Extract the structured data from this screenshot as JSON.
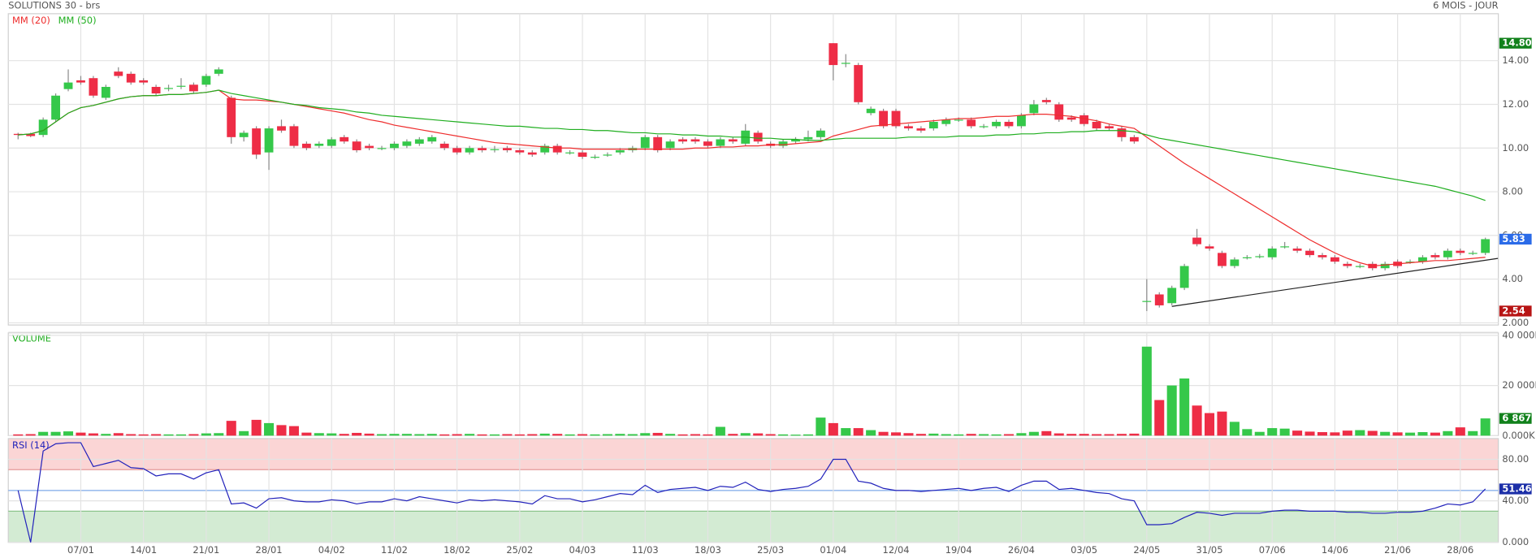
{
  "chart_data": [
    {
      "type": "candlestick",
      "title": "SOLUTIONS 30 - brs",
      "subtitle": "6 MOIS - JOUR",
      "up_color": "#35c84a",
      "down_color": "#ee2d46",
      "open": [
        10.65,
        10.65,
        10.6,
        11.3,
        12.7,
        13.1,
        13.2,
        12.3,
        13.5,
        13.4,
        13.1,
        12.8,
        12.75,
        12.85,
        12.9,
        12.9,
        13.4,
        12.3,
        10.5,
        10.9,
        9.8,
        11.0,
        11.0,
        10.2,
        10.1,
        10.1,
        10.5,
        10.3,
        10.1,
        10.0,
        10.0,
        10.1,
        10.2,
        10.3,
        10.2,
        10.0,
        9.8,
        10.0,
        9.95,
        10.0,
        9.9,
        9.8,
        9.8,
        10.1,
        9.8,
        9.8,
        9.6,
        9.7,
        9.8,
        9.9,
        10.0,
        10.5,
        10.0,
        10.4,
        10.4,
        10.3,
        10.1,
        10.4,
        10.2,
        10.7,
        10.2,
        10.1,
        10.3,
        10.4,
        10.5,
        14.8,
        13.9,
        13.8,
        11.6,
        11.7,
        11.7,
        11.0,
        10.9,
        10.9,
        11.1,
        11.3,
        11.3,
        11.0,
        11.0,
        11.2,
        11.0,
        11.6,
        12.2,
        12.0,
        11.4,
        11.5,
        11.2,
        11.0,
        10.9,
        10.5,
        3.0,
        3.3,
        2.9,
        3.6,
        5.9,
        5.5,
        5.2,
        4.6,
        5.0,
        5.05,
        5.0,
        5.5,
        5.4,
        5.3,
        5.1,
        5.0,
        4.7,
        4.6,
        4.7,
        4.5,
        4.8,
        4.8,
        4.8,
        5.1,
        5.0,
        5.3,
        5.2,
        5.2
      ],
      "high": [
        10.7,
        10.7,
        11.4,
        12.5,
        13.6,
        13.3,
        13.3,
        12.9,
        13.7,
        13.5,
        13.2,
        12.9,
        12.9,
        13.2,
        13.0,
        13.4,
        13.7,
        12.4,
        10.8,
        11.0,
        11.0,
        11.3,
        11.1,
        10.3,
        10.3,
        10.5,
        10.6,
        10.4,
        10.2,
        10.1,
        10.3,
        10.4,
        10.5,
        10.6,
        10.3,
        10.1,
        10.1,
        10.1,
        10.1,
        10.1,
        10.0,
        9.9,
        10.2,
        10.2,
        9.9,
        9.9,
        9.7,
        9.8,
        10.0,
        10.1,
        10.6,
        10.6,
        10.4,
        10.5,
        10.5,
        10.4,
        10.5,
        10.5,
        11.1,
        10.8,
        10.3,
        10.4,
        10.5,
        10.8,
        10.9,
        14.8,
        14.3,
        13.9,
        11.9,
        11.8,
        11.8,
        11.1,
        11.0,
        11.3,
        11.4,
        11.4,
        11.4,
        11.1,
        11.3,
        11.3,
        11.6,
        12.2,
        12.3,
        12.1,
        11.5,
        11.6,
        11.3,
        11.1,
        11.0,
        10.6,
        4.0,
        3.4,
        3.7,
        4.7,
        6.3,
        5.6,
        5.3,
        5.0,
        5.1,
        5.15,
        5.5,
        5.7,
        5.5,
        5.4,
        5.2,
        5.1,
        4.8,
        4.7,
        4.8,
        4.8,
        4.9,
        4.9,
        5.1,
        5.2,
        5.4,
        5.4,
        5.3,
        5.9
      ],
      "low": [
        10.4,
        10.5,
        10.5,
        11.2,
        12.6,
        12.9,
        12.3,
        12.2,
        13.2,
        12.9,
        12.9,
        12.4,
        12.6,
        12.7,
        12.5,
        12.8,
        13.3,
        10.2,
        10.3,
        9.5,
        9.0,
        10.7,
        10.0,
        9.9,
        10.0,
        10.0,
        10.2,
        9.8,
        9.9,
        9.9,
        9.9,
        10.0,
        10.1,
        10.2,
        9.9,
        9.7,
        9.7,
        9.8,
        9.8,
        9.8,
        9.7,
        9.6,
        9.7,
        9.7,
        9.7,
        9.5,
        9.5,
        9.6,
        9.7,
        9.8,
        9.9,
        9.8,
        9.9,
        10.2,
        10.2,
        10.0,
        10.0,
        10.2,
        10.1,
        10.2,
        10.0,
        10.0,
        10.2,
        10.3,
        10.4,
        13.1,
        13.7,
        12.0,
        11.5,
        10.9,
        10.9,
        10.8,
        10.7,
        10.8,
        11.0,
        11.2,
        10.9,
        10.9,
        10.9,
        10.9,
        10.9,
        11.5,
        12.0,
        11.2,
        11.2,
        11.0,
        10.8,
        10.8,
        10.3,
        10.2,
        2.54,
        2.7,
        2.8,
        3.5,
        5.5,
        5.3,
        4.5,
        4.5,
        4.9,
        4.95,
        4.9,
        5.4,
        5.2,
        5.0,
        4.9,
        4.7,
        4.5,
        4.5,
        4.4,
        4.4,
        4.5,
        4.7,
        4.7,
        4.9,
        4.9,
        5.1,
        5.1,
        5.1
      ],
      "close": [
        10.6,
        10.55,
        11.3,
        12.4,
        13.0,
        13.0,
        12.4,
        12.8,
        13.3,
        13.0,
        13.0,
        12.5,
        12.75,
        12.85,
        12.6,
        13.3,
        13.6,
        10.5,
        10.7,
        9.7,
        10.9,
        10.8,
        10.1,
        10.0,
        10.2,
        10.4,
        10.3,
        9.9,
        10.0,
        10.0,
        10.2,
        10.3,
        10.4,
        10.5,
        10.0,
        9.8,
        10.0,
        9.9,
        9.95,
        9.9,
        9.8,
        9.7,
        10.1,
        9.8,
        9.8,
        9.6,
        9.6,
        9.7,
        9.9,
        10.0,
        10.5,
        9.9,
        10.3,
        10.3,
        10.3,
        10.1,
        10.4,
        10.3,
        10.8,
        10.3,
        10.1,
        10.3,
        10.4,
        10.5,
        10.8,
        13.8,
        13.9,
        12.1,
        11.8,
        11.0,
        11.0,
        10.9,
        10.8,
        11.2,
        11.3,
        11.3,
        11.0,
        11.0,
        11.2,
        11.0,
        11.5,
        12.0,
        12.1,
        11.3,
        11.3,
        11.1,
        10.9,
        10.9,
        10.5,
        10.3,
        3.0,
        2.8,
        3.6,
        4.6,
        5.6,
        5.4,
        4.6,
        4.9,
        5.0,
        5.05,
        5.4,
        5.5,
        5.3,
        5.1,
        5.0,
        4.8,
        4.6,
        4.6,
        4.5,
        4.7,
        4.6,
        4.8,
        5.0,
        5.0,
        5.3,
        5.2,
        5.2,
        5.83
      ],
      "series": [
        {
          "name": "MM (20)",
          "color": "#ee2d2d",
          "values": [
            10.6,
            10.65,
            10.8,
            11.2,
            11.6,
            11.85,
            11.95,
            12.1,
            12.25,
            12.35,
            12.4,
            12.4,
            12.45,
            12.45,
            12.5,
            12.55,
            12.65,
            12.25,
            12.2,
            12.2,
            12.15,
            12.1,
            12.0,
            11.9,
            11.8,
            11.7,
            11.6,
            11.45,
            11.3,
            11.2,
            11.05,
            10.95,
            10.85,
            10.75,
            10.65,
            10.55,
            10.45,
            10.35,
            10.25,
            10.2,
            10.15,
            10.1,
            10.05,
            10.0,
            10.0,
            9.95,
            9.95,
            9.95,
            9.95,
            9.95,
            9.95,
            9.95,
            9.95,
            9.95,
            10.0,
            10.0,
            10.05,
            10.05,
            10.1,
            10.1,
            10.15,
            10.15,
            10.2,
            10.25,
            10.3,
            10.55,
            10.7,
            10.85,
            11.0,
            11.05,
            11.1,
            11.15,
            11.2,
            11.25,
            11.3,
            11.35,
            11.35,
            11.4,
            11.45,
            11.45,
            11.5,
            11.55,
            11.55,
            11.5,
            11.45,
            11.35,
            11.25,
            11.1,
            11.0,
            10.9,
            10.5,
            10.1,
            9.7,
            9.3,
            8.95,
            8.6,
            8.25,
            7.9,
            7.55,
            7.2,
            6.85,
            6.5,
            6.15,
            5.8,
            5.5,
            5.2,
            4.95,
            4.75,
            4.6,
            4.65,
            4.7,
            4.75,
            4.8,
            4.85,
            4.85,
            4.9,
            4.95,
            5.0
          ]
        },
        {
          "name": "MM (50)",
          "color": "#1fae1f",
          "values": [
            10.6,
            10.65,
            10.8,
            11.2,
            11.6,
            11.85,
            11.95,
            12.1,
            12.25,
            12.35,
            12.4,
            12.4,
            12.45,
            12.45,
            12.5,
            12.55,
            12.65,
            12.5,
            12.4,
            12.3,
            12.2,
            12.1,
            12.0,
            11.95,
            11.85,
            11.8,
            11.75,
            11.65,
            11.6,
            11.5,
            11.45,
            11.4,
            11.35,
            11.3,
            11.25,
            11.2,
            11.15,
            11.1,
            11.05,
            11.0,
            11.0,
            10.95,
            10.9,
            10.9,
            10.85,
            10.85,
            10.8,
            10.8,
            10.75,
            10.7,
            10.7,
            10.65,
            10.65,
            10.6,
            10.6,
            10.55,
            10.55,
            10.5,
            10.5,
            10.45,
            10.45,
            10.4,
            10.4,
            10.35,
            10.35,
            10.4,
            10.45,
            10.45,
            10.45,
            10.45,
            10.45,
            10.5,
            10.5,
            10.5,
            10.5,
            10.55,
            10.55,
            10.55,
            10.6,
            10.6,
            10.65,
            10.65,
            10.7,
            10.7,
            10.75,
            10.75,
            10.8,
            10.8,
            10.8,
            10.75,
            10.6,
            10.45,
            10.35,
            10.25,
            10.15,
            10.05,
            9.95,
            9.85,
            9.75,
            9.65,
            9.55,
            9.45,
            9.35,
            9.25,
            9.15,
            9.05,
            8.95,
            8.85,
            8.75,
            8.65,
            8.55,
            8.45,
            8.35,
            8.25,
            8.1,
            7.95,
            7.8,
            7.6
          ]
        }
      ],
      "trendline": {
        "x": [
          92,
          118
        ],
        "y": [
          2.75,
          4.95
        ],
        "color": "#222222"
      },
      "ylim": [
        1.9,
        16.15
      ],
      "yticks": [
        {
          "value": 14,
          "label": "14.00"
        },
        {
          "value": 12,
          "label": "12.00"
        },
        {
          "value": 10,
          "label": "10.00"
        },
        {
          "value": 8,
          "label": "8.00"
        },
        {
          "value": 6,
          "label": "6.00"
        },
        {
          "value": 4,
          "label": "4.00"
        },
        {
          "value": 2,
          "label": "2.000"
        }
      ],
      "markers": [
        {
          "value": 14.8,
          "label": "14.80",
          "color": "#11811b"
        },
        {
          "value": 5.83,
          "label": "5.83",
          "color": "#2b6be8"
        },
        {
          "value": 2.54,
          "label": "2.54",
          "color": "#b71414"
        }
      ],
      "grid": true
    },
    {
      "type": "bar",
      "title": "VOLUME",
      "values": [
        500,
        600,
        1500,
        1500,
        1700,
        1200,
        900,
        700,
        1000,
        600,
        500,
        600,
        500,
        500,
        600,
        900,
        1000,
        5900,
        1800,
        6300,
        5000,
        4200,
        3800,
        1200,
        1000,
        900,
        700,
        1100,
        800,
        600,
        700,
        700,
        600,
        700,
        500,
        600,
        700,
        500,
        500,
        600,
        500,
        600,
        800,
        700,
        500,
        600,
        500,
        600,
        700,
        600,
        1000,
        1100,
        700,
        500,
        600,
        500,
        3500,
        700,
        1000,
        900,
        600,
        500,
        400,
        500,
        7200,
        5000,
        3000,
        3000,
        2200,
        1500,
        1300,
        1000,
        700,
        800,
        600,
        500,
        700,
        600,
        500,
        600,
        1000,
        1500,
        1800,
        900,
        700,
        700,
        600,
        600,
        700,
        800,
        35500,
        14200,
        20000,
        22800,
        12000,
        9000,
        9600,
        5500,
        2600,
        1500,
        3000,
        2800,
        2000,
        1600,
        1400,
        1300,
        2000,
        2200,
        1900,
        1500,
        1300,
        1200,
        1400,
        1200,
        1800,
        3300,
        1800,
        6867
      ],
      "ylim": [
        0,
        41000
      ],
      "yticks": [
        {
          "value": 40000,
          "label": "40 000K"
        },
        {
          "value": 20000,
          "label": "20 000K"
        },
        {
          "value": 0,
          "label": "0.000K"
        }
      ],
      "markers": [
        {
          "value": 6867,
          "label": "6 867K",
          "color": "#11811b"
        }
      ],
      "grid": true
    },
    {
      "type": "line",
      "title": "RSI (14)",
      "color": "#2222bb",
      "categories": [
        null,
        null,
        null,
        null,
        null,
        "07/01",
        null,
        null,
        null,
        null,
        "14/01",
        null,
        null,
        null,
        null,
        "21/01",
        null,
        null,
        null,
        null,
        "28/01",
        null,
        null,
        null,
        null,
        "04/02",
        null,
        null,
        null,
        null,
        "11/02",
        null,
        null,
        null,
        null,
        "18/02",
        null,
        null,
        null,
        null,
        "25/02",
        null,
        null,
        null,
        null,
        "04/03",
        null,
        null,
        null,
        null,
        "11/03",
        null,
        null,
        null,
        null,
        "18/03",
        null,
        null,
        null,
        null,
        "25/03",
        null,
        null,
        null,
        null,
        "01/04",
        null,
        null,
        null,
        null,
        "12/04",
        null,
        null,
        null,
        null,
        "19/04",
        null,
        null,
        null,
        null,
        "26/04",
        null,
        null,
        null,
        null,
        "03/05",
        null,
        null,
        null,
        null,
        "24/05",
        null,
        null,
        null,
        null,
        "31/05",
        null,
        null,
        null,
        null,
        "07/06",
        null,
        null,
        null,
        null,
        "14/06",
        null,
        null,
        null,
        null,
        "21/06",
        null,
        null,
        null,
        null,
        "28/06",
        null,
        null
      ],
      "values": [
        50,
        0,
        88,
        95,
        96,
        96,
        73,
        76,
        79,
        72,
        71,
        64,
        66,
        66,
        61,
        67,
        70,
        37,
        38,
        33,
        42,
        43,
        40,
        39,
        39,
        41,
        40,
        37,
        39,
        39,
        42,
        40,
        44,
        42,
        40,
        38,
        41,
        40,
        41,
        40,
        39,
        37,
        45,
        42,
        42,
        39,
        41,
        44,
        47,
        46,
        55,
        48,
        51,
        52,
        53,
        50,
        54,
        53,
        58,
        51,
        49,
        51,
        52,
        54,
        61,
        80,
        80,
        59,
        57,
        52,
        50,
        50,
        49,
        50,
        51,
        52,
        50,
        52,
        53,
        49,
        55,
        59,
        59,
        51,
        52,
        50,
        48,
        47,
        42,
        40,
        17,
        17,
        18,
        24,
        29,
        28,
        26,
        28,
        28,
        28,
        30,
        31,
        31,
        30,
        30,
        30,
        29,
        29,
        28,
        28,
        29,
        29,
        30,
        33,
        37,
        36,
        39,
        51.46
      ],
      "ylim": [
        0,
        100
      ],
      "yticks": [
        {
          "value": 80,
          "label": "80.00"
        },
        {
          "value": 40,
          "label": "40.00"
        },
        {
          "value": 0,
          "label": "0.000"
        }
      ],
      "bands": {
        "upper": 70,
        "lower": 30,
        "mid": 50,
        "upper_color": "#fbd5d5",
        "lower_color": "#d3ebd3",
        "mid_color": "#7fa8e8"
      },
      "markers": [
        {
          "value": 51.46,
          "label": "51.46",
          "color": "#1c2fa8"
        }
      ],
      "grid": true
    }
  ]
}
